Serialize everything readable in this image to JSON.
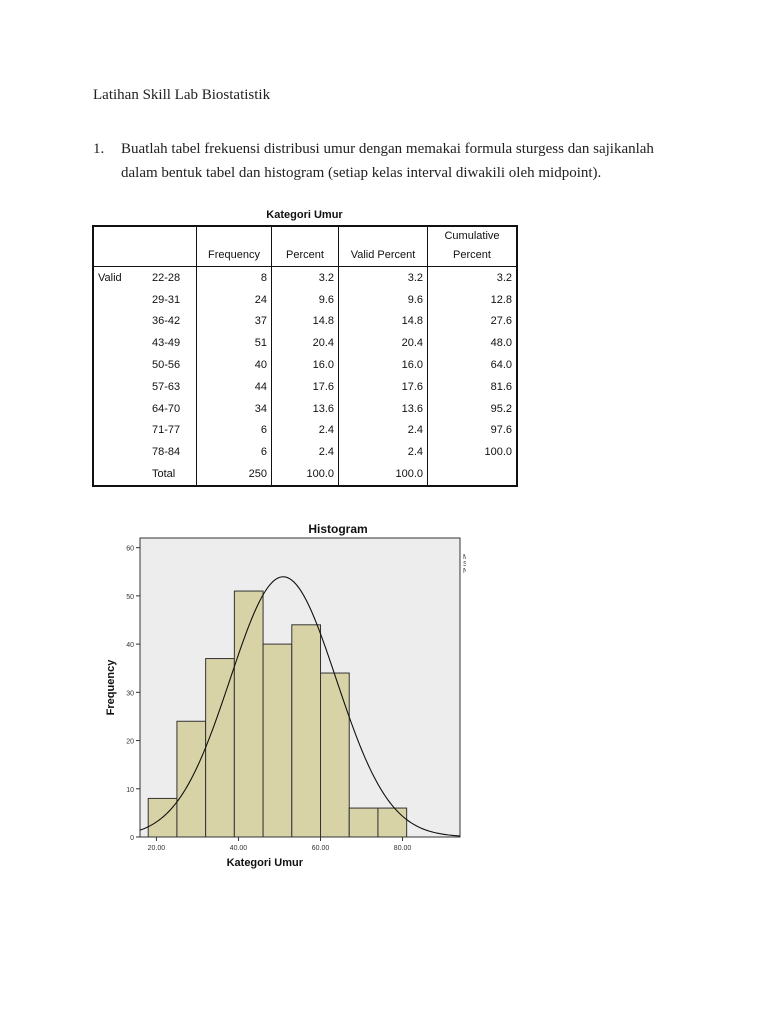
{
  "page_title": "Latihan Skill Lab Biostatistik",
  "question": {
    "number": "1.",
    "text": "Buatlah tabel frekuensi distribusi umur dengan memakai formula sturgess dan sajikanlah dalam bentuk tabel dan histogram (setiap kelas interval diwakili oleh midpoint)."
  },
  "table": {
    "title": "Kategori Umur",
    "headers": {
      "frequency": "Frequency",
      "percent": "Percent",
      "valid_percent": "Valid Percent",
      "cumulative_1": "Cumulative",
      "cumulative_2": "Percent"
    },
    "group_label": "Valid",
    "rows": [
      {
        "label": "22-28",
        "frequency": "8",
        "percent": "3.2",
        "valid": "3.2",
        "cumulative": "3.2"
      },
      {
        "label": "29-31",
        "frequency": "24",
        "percent": "9.6",
        "valid": "9.6",
        "cumulative": "12.8"
      },
      {
        "label": "36-42",
        "frequency": "37",
        "percent": "14.8",
        "valid": "14.8",
        "cumulative": "27.6"
      },
      {
        "label": "43-49",
        "frequency": "51",
        "percent": "20.4",
        "valid": "20.4",
        "cumulative": "48.0"
      },
      {
        "label": "50-56",
        "frequency": "40",
        "percent": "16.0",
        "valid": "16.0",
        "cumulative": "64.0"
      },
      {
        "label": "57-63",
        "frequency": "44",
        "percent": "17.6",
        "valid": "17.6",
        "cumulative": "81.6"
      },
      {
        "label": "64-70",
        "frequency": "34",
        "percent": "13.6",
        "valid": "13.6",
        "cumulative": "95.2"
      },
      {
        "label": "71-77",
        "frequency": "6",
        "percent": "2.4",
        "valid": "2.4",
        "cumulative": "97.6"
      },
      {
        "label": "78-84",
        "frequency": "6",
        "percent": "2.4",
        "valid": "2.4",
        "cumulative": "100.0"
      }
    ],
    "total": {
      "label": "Total",
      "frequency": "250",
      "percent": "100.0",
      "valid": "100.0",
      "cumulative": ""
    }
  },
  "chart_data": {
    "type": "bar",
    "title": "Histogram",
    "xlabel": "Kategori Umur",
    "ylabel": "Frequency",
    "bins": [
      {
        "from": 18,
        "to": 25,
        "value": 8
      },
      {
        "from": 25,
        "to": 32,
        "value": 24
      },
      {
        "from": 32,
        "to": 39,
        "value": 37
      },
      {
        "from": 39,
        "to": 46,
        "value": 51
      },
      {
        "from": 46,
        "to": 53,
        "value": 40
      },
      {
        "from": 53,
        "to": 60,
        "value": 44
      },
      {
        "from": 60,
        "to": 67,
        "value": 34
      },
      {
        "from": 67,
        "to": 74,
        "value": 6
      },
      {
        "from": 74,
        "to": 81,
        "value": 6
      }
    ],
    "xlim": [
      16,
      94
    ],
    "ylim": [
      0,
      62
    ],
    "xticks": [
      20,
      40,
      60,
      80
    ],
    "xtick_labels": [
      "20.00",
      "40.00",
      "60.00",
      "80.00"
    ],
    "yticks": [
      0,
      10,
      20,
      30,
      40,
      50,
      60
    ],
    "normal_curve": {
      "mean": 50.9,
      "std": 12.937,
      "n": 250,
      "bin_width": 7
    },
    "stats": [
      "Mean = 50.90",
      "Std. Dev. = 12.937",
      "N = 250"
    ],
    "bar_color": "#d8d3a6",
    "plot_background": "#ededed",
    "grid": false
  }
}
